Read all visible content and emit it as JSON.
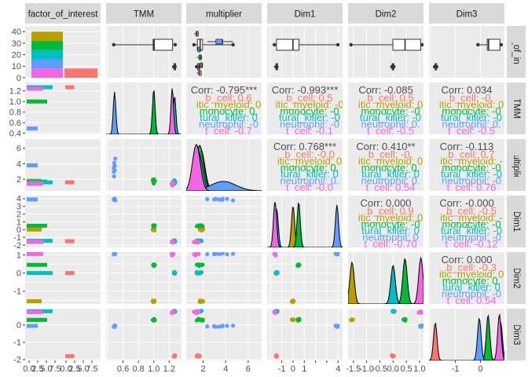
{
  "chart_data": {
    "type": "pairs-matrix",
    "variables": [
      "factor_of_interest",
      "TMM",
      "multiplier",
      "Dim1",
      "Dim2",
      "Dim3"
    ],
    "row_strip_labels": [
      "factor_of_interest",
      "TMM",
      "multiplier",
      "Dim1",
      "Dim2",
      "Dim3"
    ],
    "categories": [
      "b_cell",
      "dendritic_myeloid",
      "monocyte",
      "natural_killer",
      "neutrophil",
      "t_cell"
    ],
    "category_colors": {
      "b_cell": "#F8766D",
      "dendritic_myeloid": "#B79F00",
      "monocyte": "#00BA38",
      "natural_killer": "#00BFC4",
      "neutrophil": "#619CFF",
      "t_cell": "#F564E3"
    },
    "category_counts": {
      "b_cell": 8,
      "dendritic_myeloid": 8,
      "monocyte": 8,
      "natural_killer": 8,
      "neutrophil": 8,
      "t_cell": 8
    },
    "factor_counts": {
      "level_1": 40,
      "level_2": 8
    },
    "ranges": {
      "factor_of_interest": [
        0,
        45
      ],
      "TMM": [
        0.38,
        1.36
      ],
      "multiplier": [
        0.5,
        7.2
      ],
      "Dim1": [
        -2.3,
        4.4
      ],
      "Dim2": [
        -1.7,
        1.15
      ],
      "Dim3": [
        -2.05,
        0.95
      ]
    },
    "ticks": {
      "factor_of_interest_y": [
        "0",
        "10",
        "20",
        "30",
        "40"
      ],
      "TMM": [
        "0.4",
        "0.6",
        "0.8",
        "1.0",
        "1.2"
      ],
      "multiplier": [
        "2",
        "4",
        "6"
      ],
      "Dim1": [
        "-2",
        "-1",
        "0",
        "1",
        "2",
        "3",
        "4"
      ],
      "Dim2": [
        "-1",
        "0",
        "1"
      ],
      "Dim3": [
        "-2",
        "-1",
        "0"
      ],
      "bar_x_left": [
        "0.0",
        "2.5",
        "5.0",
        "7.5"
      ],
      "bar_x_right": [
        "0.0",
        "2.5",
        "5.0",
        "7.5"
      ],
      "bottom_tmm": [
        "0.6",
        "0.8",
        "1.0",
        "1.2"
      ],
      "bottom_multiplier": [
        "2",
        "4",
        "6"
      ],
      "bottom_dim1": [
        "-1",
        "0",
        "1",
        "2",
        "3",
        "4"
      ],
      "bottom_dim2": [
        "-1.5",
        "-1.0",
        "-0.5",
        "0.0",
        "0.5",
        "1.0"
      ],
      "bottom_dim3": [
        "-1",
        "0"
      ]
    },
    "group_means": {
      "TMM": {
        "b_cell": 1.27,
        "dendritic_myeloid": 1.0,
        "monocyte": 1.0,
        "natural_killer": 1.27,
        "neutrophil": 0.49,
        "t_cell": 1.24
      },
      "multiplier": {
        "b_cell": 1.6,
        "dendritic_myeloid": 1.8,
        "monocyte": 1.7,
        "natural_killer": 1.6,
        "neutrophil": 3.8,
        "t_cell": 1.4
      },
      "Dim1": {
        "b_cell": -1.5,
        "dendritic_myeloid": 0.0,
        "monocyte": 0.5,
        "natural_killer": -1.45,
        "neutrophil": 3.9,
        "t_cell": -1.6
      },
      "Dim2": {
        "b_cell": 0.0,
        "dendritic_myeloid": -1.55,
        "monocyte": 0.45,
        "natural_killer": 0.0,
        "neutrophil": 1.05,
        "t_cell": 1.05
      },
      "Dim3": {
        "b_cell": -1.8,
        "dendritic_myeloid": 0.3,
        "monocyte": 0.3,
        "natural_killer": 0.8,
        "neutrophil": -0.05,
        "t_cell": 0.75
      }
    },
    "correlations": [
      {
        "row": "TMM",
        "col": "multiplier",
        "overall": "Corr: -0.795***",
        "by_group": [
          [
            "b_cell",
            "b_cell: 0.6"
          ],
          [
            "dendritic_myeloid",
            "itic_myeloid: 0"
          ],
          [
            "monocyte",
            "monocyte: 0."
          ],
          [
            "natural_killer",
            "tural_killer: 0"
          ],
          [
            "neutrophil",
            "neutrophil: -0"
          ],
          [
            "t_cell",
            "t_cell: -0.7"
          ]
        ]
      },
      {
        "row": "TMM",
        "col": "Dim1",
        "overall": "Corr: -0.993***",
        "by_group": [
          [
            "b_cell",
            "b_cell: 0.5"
          ],
          [
            "dendritic_myeloid",
            "itic_myeloid: -0"
          ],
          [
            "monocyte",
            "monocyte: -0"
          ],
          [
            "natural_killer",
            "tural_killer: -0"
          ],
          [
            "neutrophil",
            "neutrophil: -0"
          ],
          [
            "t_cell",
            "t_cell: -0.1"
          ]
        ]
      },
      {
        "row": "TMM",
        "col": "Dim2",
        "overall": "Corr: -0.085",
        "by_group": [
          [
            "b_cell",
            "b_cell: 0.5"
          ],
          [
            "dendritic_myeloid",
            "itic_myeloid: 0"
          ],
          [
            "monocyte",
            "monocyte: -0"
          ],
          [
            "natural_killer",
            "tural_killer: -0"
          ],
          [
            "neutrophil",
            "neutrophil: 0."
          ],
          [
            "t_cell",
            "t_cell: -0.5"
          ]
        ]
      },
      {
        "row": "TMM",
        "col": "Dim3",
        "overall": "Corr: 0.034",
        "by_group": [
          [
            "b_cell",
            "b_cell: -0."
          ],
          [
            "dendritic_myeloid",
            "itic_myeloid: 0"
          ],
          [
            "monocyte",
            "monocyte: -0"
          ],
          [
            "natural_killer",
            "tural_killer: -0"
          ],
          [
            "neutrophil",
            "neutrophil: 0."
          ],
          [
            "t_cell",
            "t_cell: -0.5"
          ]
        ]
      },
      {
        "row": "multiplier",
        "col": "Dim1",
        "overall": "Corr: 0.768***",
        "by_group": [
          [
            "b_cell",
            "b_cell: -0.0"
          ],
          [
            "dendritic_myeloid",
            "itic_myeloid: 0"
          ],
          [
            "monocyte",
            "monocyte: 0."
          ],
          [
            "natural_killer",
            "tural_killer: 0"
          ],
          [
            "neutrophil",
            "neutrophil: 0."
          ],
          [
            "t_cell",
            "t_cell: -0.0"
          ]
        ]
      },
      {
        "row": "multiplier",
        "col": "Dim2",
        "overall": "Corr: 0.410**",
        "by_group": [
          [
            "b_cell",
            "b_cell: -0."
          ],
          [
            "dendritic_myeloid",
            "itic_myeloid: 0"
          ],
          [
            "monocyte",
            "monocyte: 0."
          ],
          [
            "natural_killer",
            "tural_killer: 0"
          ],
          [
            "neutrophil",
            "neutrophil: 0."
          ],
          [
            "t_cell",
            "t_cell: 0.54"
          ]
        ]
      },
      {
        "row": "multiplier",
        "col": "Dim3",
        "overall": "Corr: -0.113",
        "by_group": [
          [
            "b_cell",
            "b_cell: 0.7"
          ],
          [
            "dendritic_myeloid",
            "itic_myeloid: -"
          ],
          [
            "monocyte",
            "monocyte: -0"
          ],
          [
            "natural_killer",
            "tural_killer: -0"
          ],
          [
            "neutrophil",
            "neutrophil: -0"
          ],
          [
            "t_cell",
            "t_cell: 0.76"
          ]
        ]
      },
      {
        "row": "Dim1",
        "col": "Dim2",
        "overall": "Corr: 0.000",
        "by_group": [
          [
            "b_cell",
            "b_cell: 0.9"
          ],
          [
            "dendritic_myeloid",
            "itic_myeloid: 0"
          ],
          [
            "monocyte",
            "monocyte: -0"
          ],
          [
            "natural_killer",
            "tural_killer: 0"
          ],
          [
            "neutrophil",
            "neutrophil: 0"
          ],
          [
            "t_cell",
            "t_cell: -0.70"
          ]
        ]
      },
      {
        "row": "Dim1",
        "col": "Dim3",
        "overall": "Corr: -0.000",
        "by_group": [
          [
            "b_cell",
            "b_cell: -0.5"
          ],
          [
            "dendritic_myeloid",
            "itic_myeloid: -"
          ],
          [
            "monocyte",
            "monocyte: -0"
          ],
          [
            "natural_killer",
            "tural_killer: -0"
          ],
          [
            "neutrophil",
            "neutrophil: -0"
          ],
          [
            "t_cell",
            "t_cell: -0.12"
          ]
        ]
      },
      {
        "row": "Dim2",
        "col": "Dim3",
        "overall": "Corr: 0.000",
        "by_group": [
          [
            "b_cell",
            "b_cell: -0.3"
          ],
          [
            "dendritic_myeloid",
            "itic_myeloid: 0"
          ],
          [
            "monocyte",
            "monocyte: 0."
          ],
          [
            "natural_killer",
            "tural_killer: 0"
          ],
          [
            "neutrophil",
            "neutrophil: -0"
          ],
          [
            "t_cell",
            "t_cell: 0.54"
          ]
        ]
      }
    ]
  }
}
